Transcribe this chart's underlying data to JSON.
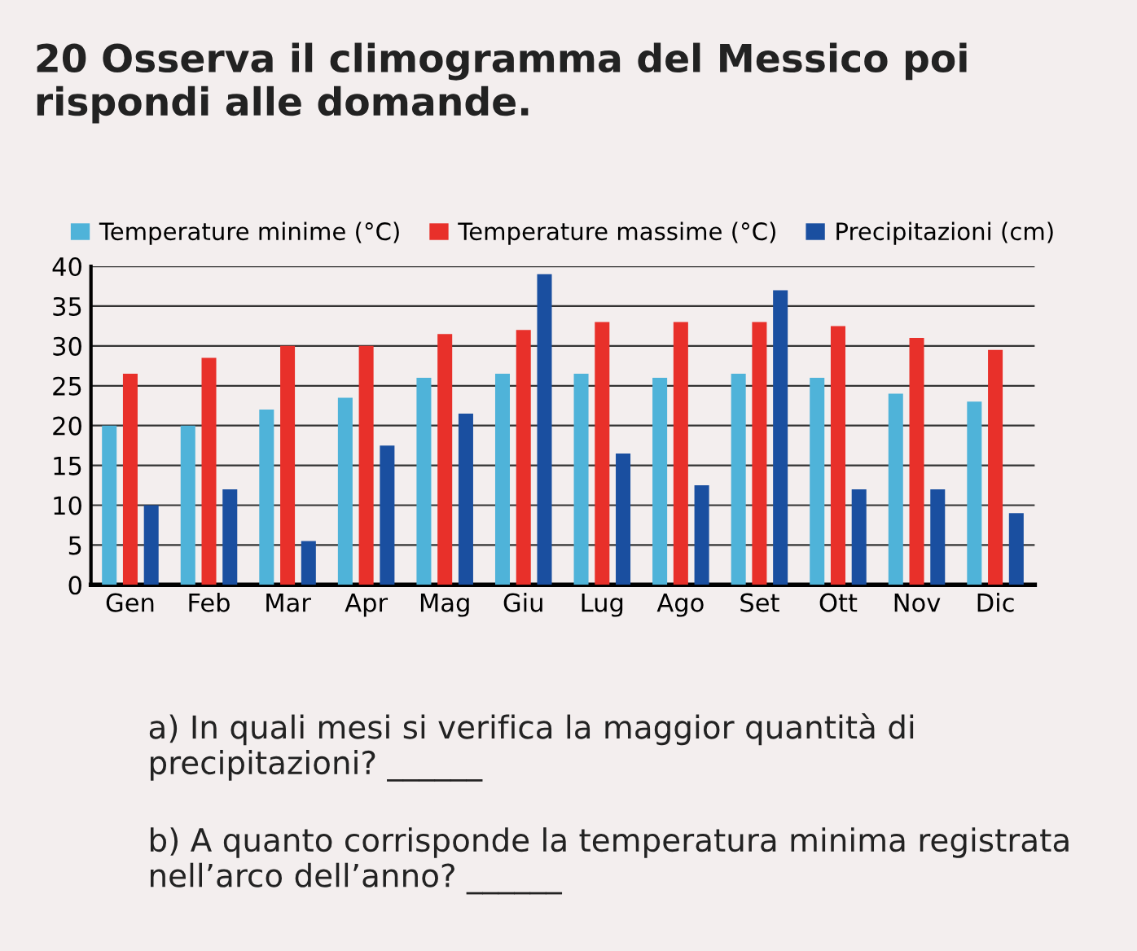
{
  "chart_data": {
    "type": "bar",
    "title": "20 Osserva il climogramma del Messico poi rispondi alle domande.",
    "categories": [
      "Gen",
      "Feb",
      "Mar",
      "Apr",
      "Mag",
      "Giu",
      "Lug",
      "Ago",
      "Set",
      "Ott",
      "Nov",
      "Dic"
    ],
    "series": [
      {
        "name": "Temperature minime (°C)",
        "color": "#4fb3d9",
        "values": [
          20,
          20,
          22,
          23.5,
          26,
          26.5,
          26.5,
          26,
          26.5,
          26,
          24,
          23
        ]
      },
      {
        "name": "Temperature massime (°C)",
        "color": "#e8302a",
        "values": [
          26.5,
          28.5,
          30,
          30,
          31.5,
          32,
          33,
          33,
          33,
          32.5,
          31,
          29.5
        ]
      },
      {
        "name": "Precipitazioni (cm)",
        "color": "#1a4fa0",
        "values": [
          10,
          12,
          5.5,
          17.5,
          21.5,
          39,
          16.5,
          12.5,
          37,
          12,
          12,
          9
        ]
      }
    ],
    "ylim": [
      0,
      40
    ],
    "yticks": [
      0,
      5,
      10,
      15,
      20,
      25,
      30,
      35,
      40
    ],
    "grid": "y",
    "legend": "top",
    "annotations": [
      "a) In quali mesi si verifica la maggior quantità di precipitazioni? ______",
      "b) A quanto corrisponde la temperatura minima registrata nell’arco dell’anno? ______"
    ]
  }
}
